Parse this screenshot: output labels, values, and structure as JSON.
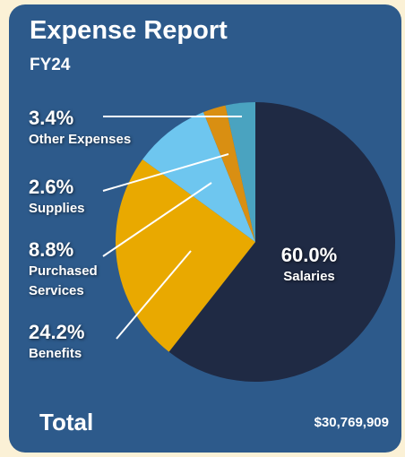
{
  "chart_data": {
    "type": "pie",
    "title": "Expense Report",
    "subtitle": "FY24",
    "categories": [
      "Salaries",
      "Benefits",
      "Purchased Services",
      "Supplies",
      "Other Expenses"
    ],
    "values": [
      60.0,
      24.2,
      8.8,
      2.6,
      3.4
    ],
    "value_labels": [
      "60.0%",
      "24.2%",
      "8.8%",
      "2.6%",
      "3.4%"
    ],
    "colors": [
      "#1f2a44",
      "#e9a900",
      "#6ec6ef",
      "#d98f12",
      "#4aa3c0"
    ],
    "total_label": "Total",
    "total_value": "$30,769,909"
  }
}
